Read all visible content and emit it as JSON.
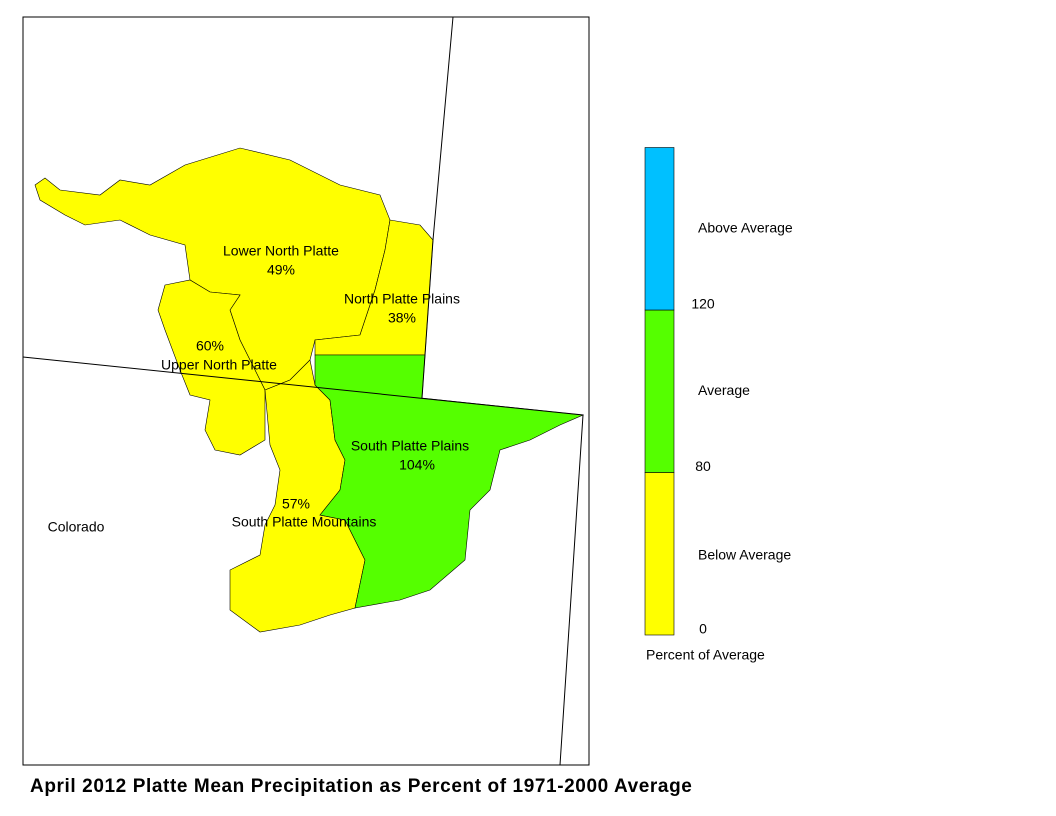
{
  "title": "April 2012 Platte Mean Precipitation as Percent of 1971-2000 Average",
  "state_label": "Colorado",
  "regions": [
    {
      "name": "Lower North Platte",
      "value": 49,
      "value_label": "49%"
    },
    {
      "name": "North Platte Plains",
      "value": 38,
      "value_label": "38%"
    },
    {
      "name": "Upper North Platte",
      "value": 60,
      "value_label": "60%"
    },
    {
      "name": "South Platte Mountains",
      "value": 57,
      "value_label": "57%"
    },
    {
      "name": "South Platte Plains",
      "value": 104,
      "value_label": "104%"
    }
  ],
  "legend": {
    "title": "Percent of Average",
    "ticks": [
      0,
      80,
      120
    ],
    "classes": [
      {
        "name": "Below Average",
        "color": "#ffff00"
      },
      {
        "name": "Average",
        "color": "#55ff00"
      },
      {
        "name": "Above Average",
        "color": "#00c0ff"
      }
    ]
  }
}
